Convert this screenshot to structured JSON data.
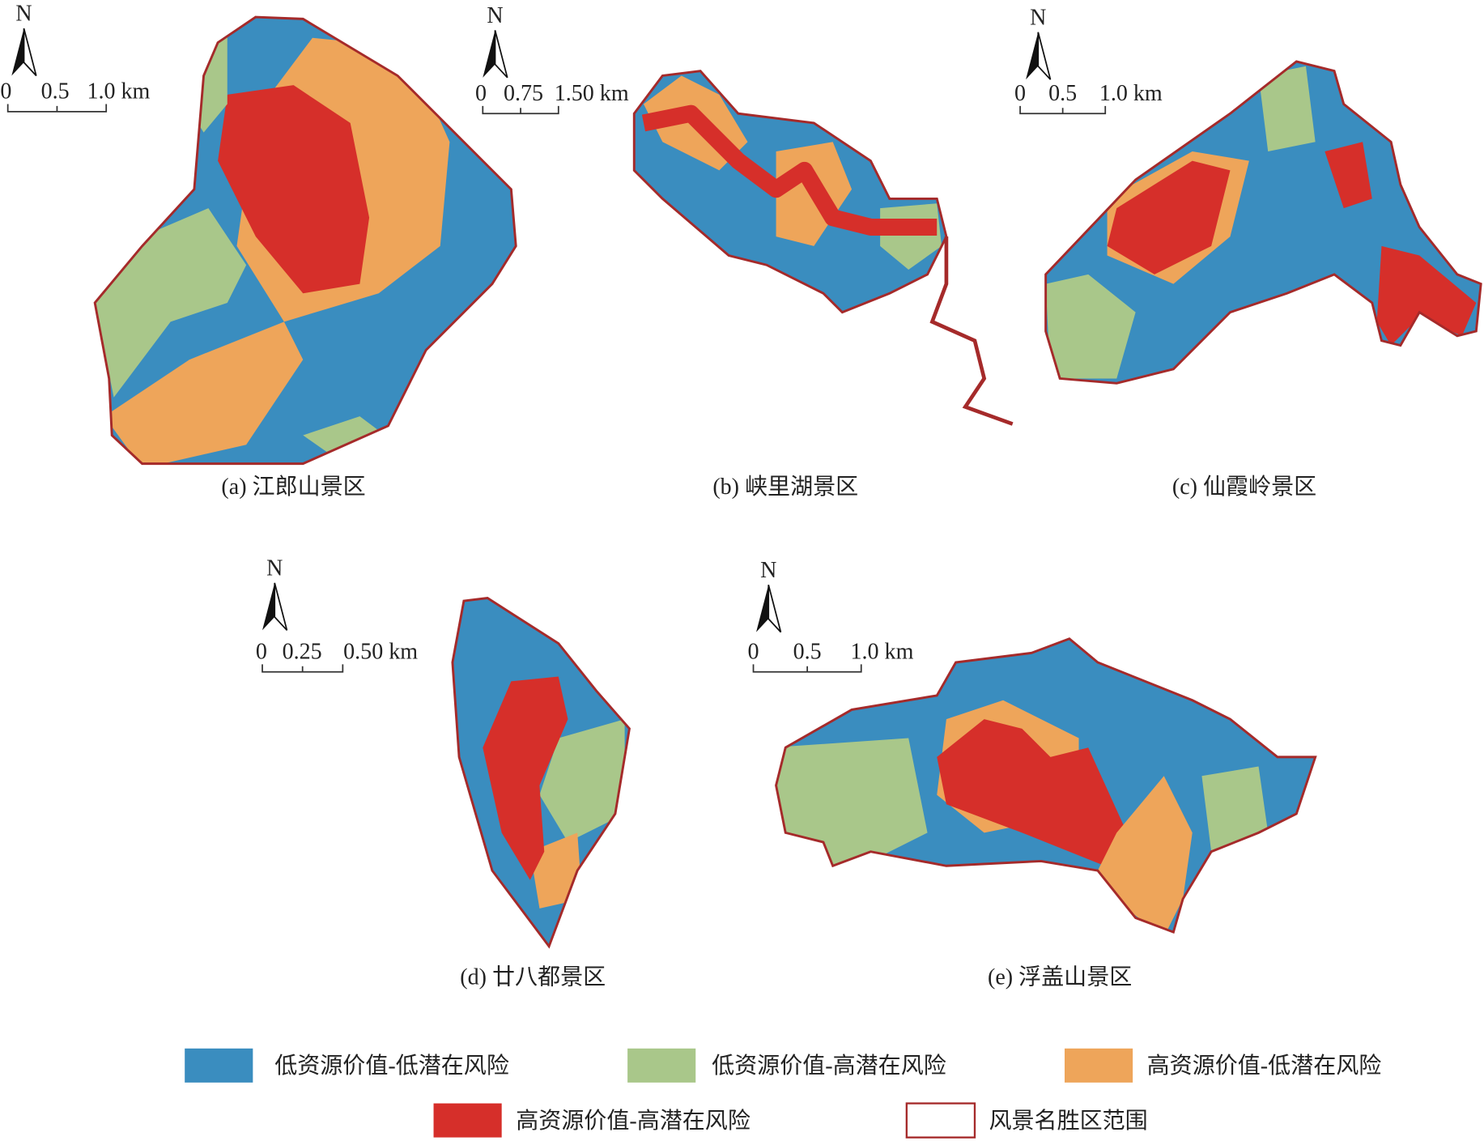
{
  "panels": [
    {
      "caption": "(a) 江郎山景区",
      "north": "N",
      "scale": [
        "0",
        "0.5",
        "1.0 km"
      ]
    },
    {
      "caption": "(b) 峡里湖景区",
      "north": "N",
      "scale": [
        "0",
        "0.75",
        "1.50 km"
      ]
    },
    {
      "caption": "(c) 仙霞岭景区",
      "north": "N",
      "scale": [
        "0",
        "0.5",
        "1.0 km"
      ]
    },
    {
      "caption": "(d) 廿八都景区",
      "north": "N",
      "scale": [
        "0",
        "0.25",
        "0.50 km"
      ]
    },
    {
      "caption": "(e) 浮盖山景区",
      "north": "N",
      "scale": [
        "0",
        "0.5",
        "1.0 km"
      ]
    }
  ],
  "legend": [
    "低资源价值-低潜在风险",
    "低资源价值-高潜在风险",
    "高资源价值-低潜在风险",
    "高资源价值-高潜在风险",
    "风景名胜区范围"
  ]
}
